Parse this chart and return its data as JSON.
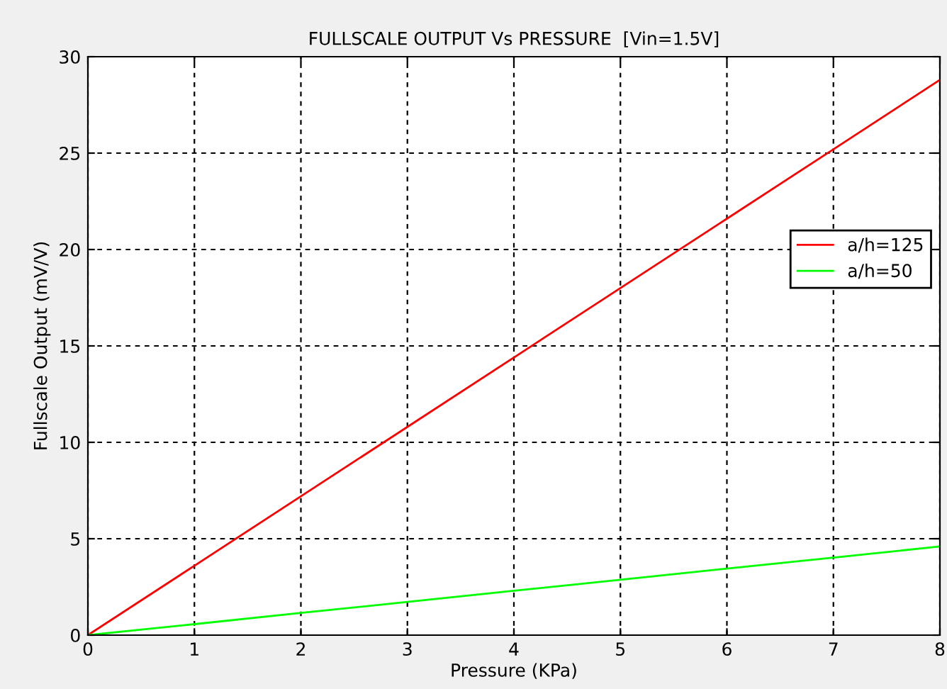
{
  "chart_data": {
    "type": "line",
    "title": "FULLSCALE OUTPUT Vs PRESSURE  [Vin=1.5V]",
    "xlabel": "Pressure (KPa)",
    "ylabel": "Fullscale Output (mV/V)",
    "x": [
      0,
      1,
      2,
      3,
      4,
      5,
      6,
      7,
      8
    ],
    "series": [
      {
        "name": "a/h=125",
        "color": "#ff0000",
        "values": [
          0,
          3.6,
          7.2,
          10.8,
          14.4,
          18.0,
          21.6,
          25.2,
          28.8
        ]
      },
      {
        "name": "a/h=50",
        "color": "#00ff00",
        "values": [
          0,
          0.57,
          1.15,
          1.72,
          2.3,
          2.87,
          3.45,
          4.02,
          4.6
        ]
      }
    ],
    "xlim": [
      0,
      8
    ],
    "xticks": [
      0,
      1,
      2,
      3,
      4,
      5,
      6,
      7,
      8
    ],
    "ylim": [
      0,
      30
    ],
    "yticks": [
      0,
      5,
      10,
      15,
      20,
      25,
      30
    ],
    "grid": true,
    "legend": "right",
    "marker": "none",
    "line_style": "solid"
  }
}
